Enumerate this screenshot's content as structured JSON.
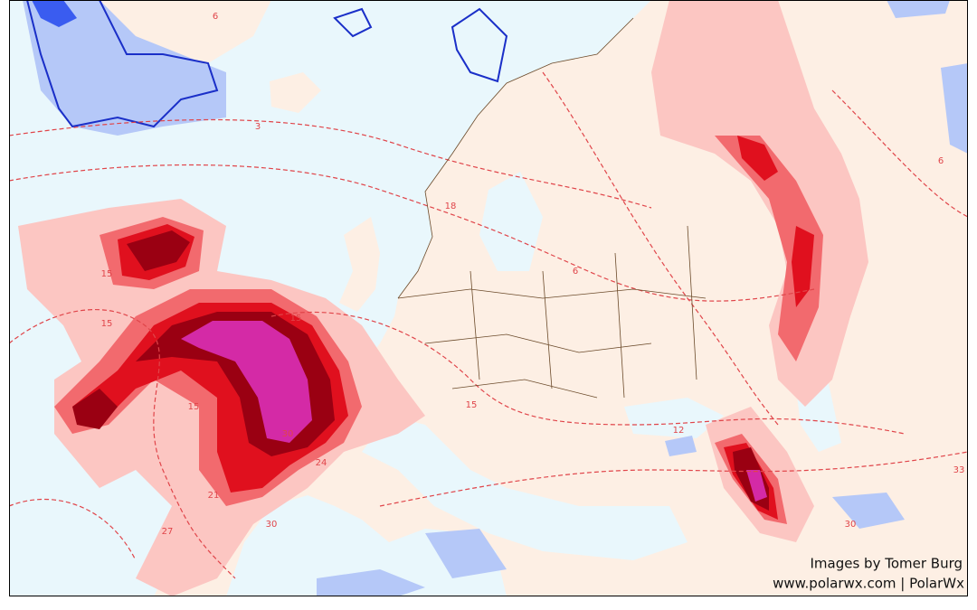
{
  "map": {
    "contour_labels": [
      15,
      15,
      15,
      15,
      6,
      3,
      6,
      18,
      30,
      24,
      21,
      27,
      30,
      12,
      30,
      33,
      6,
      15
    ]
  },
  "credits": {
    "line1": "Images by Tomer Burg",
    "line2": "www.polarwx.com | PolarWx"
  }
}
